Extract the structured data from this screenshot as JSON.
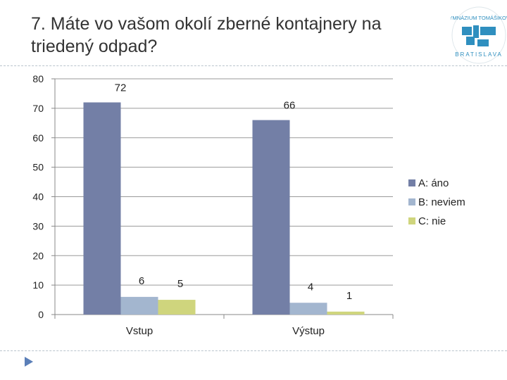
{
  "slide": {
    "title": "7. Máte vo vašom okolí zberné kontajnery na triedený odpad?"
  },
  "logo": {
    "text_top": "GYMNÁZIUM TOMÁŠIKOVA",
    "text_bottom": "BRATISLAVA",
    "color": "#2f8fbf"
  },
  "chart_data": {
    "type": "bar",
    "categories": [
      "Vstup",
      "Výstup"
    ],
    "series": [
      {
        "name": "A: áno",
        "values": [
          72,
          66
        ],
        "color": "#737fa6"
      },
      {
        "name": "B: neviem",
        "values": [
          6,
          4
        ],
        "color": "#a3b6cf"
      },
      {
        "name": "C: nie",
        "values": [
          5,
          1
        ],
        "color": "#cfd57d"
      }
    ],
    "ylim": [
      0,
      80
    ],
    "yticks": [
      0,
      10,
      20,
      30,
      40,
      50,
      60,
      70,
      80
    ],
    "grid": true,
    "legend": "right"
  }
}
